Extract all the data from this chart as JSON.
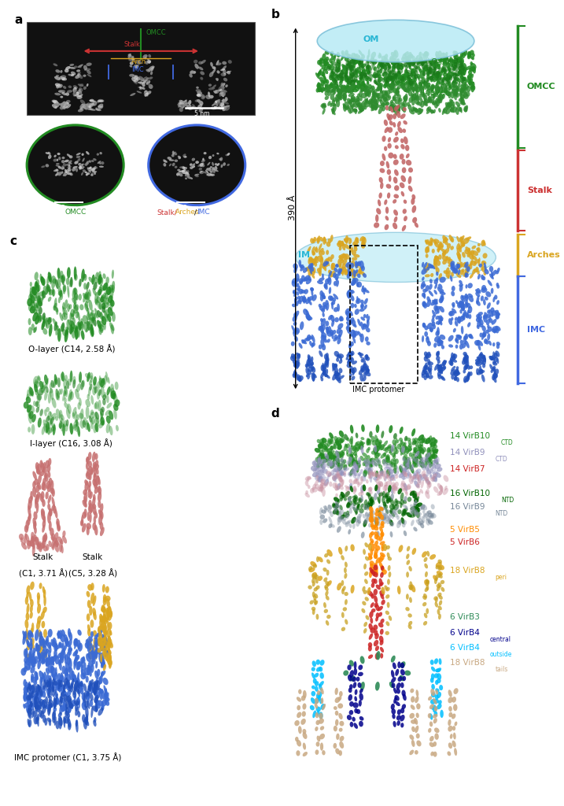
{
  "panel_labels": [
    "a",
    "b",
    "c",
    "d"
  ],
  "panel_label_fontsize": 11,
  "panel_label_weight": "bold",
  "background_color": "#ffffff",
  "green_color": "#228B22",
  "red_color": "#CC3333",
  "gold_color": "#DAA520",
  "blue_color": "#4169E1",
  "pink_color": "#C67070",
  "cyan_color": "#87CEEB",
  "legend_d": [
    {
      "main": "14 VirB10",
      "sub": "CTD",
      "color": "#228B22"
    },
    {
      "main": "14 VirB9",
      "sub": "CTD",
      "color": "#9090BB"
    },
    {
      "main": "14 VirB7",
      "sub": "",
      "color": "#CC2222"
    },
    {
      "main": "16 VirB10",
      "sub": "NTD",
      "color": "#006400"
    },
    {
      "main": "16 VirB9",
      "sub": "NTD",
      "color": "#778899"
    },
    {
      "main": "5 VirB5",
      "sub": "",
      "color": "#FF8C00"
    },
    {
      "main": "5 VirB6",
      "sub": "",
      "color": "#CC2222"
    },
    {
      "main": "18 VirB8",
      "sub": "peri",
      "color": "#DAA520"
    },
    {
      "main": "6 VirB3",
      "sub": "",
      "color": "#2E8B57"
    },
    {
      "main": "6 VirB4",
      "sub": "central",
      "color": "#00008B"
    },
    {
      "main": "6 VirB4",
      "sub": "outside",
      "color": "#00BFFF"
    },
    {
      "main": "18 VirB8",
      "sub": "tails",
      "color": "#C8A882"
    }
  ]
}
